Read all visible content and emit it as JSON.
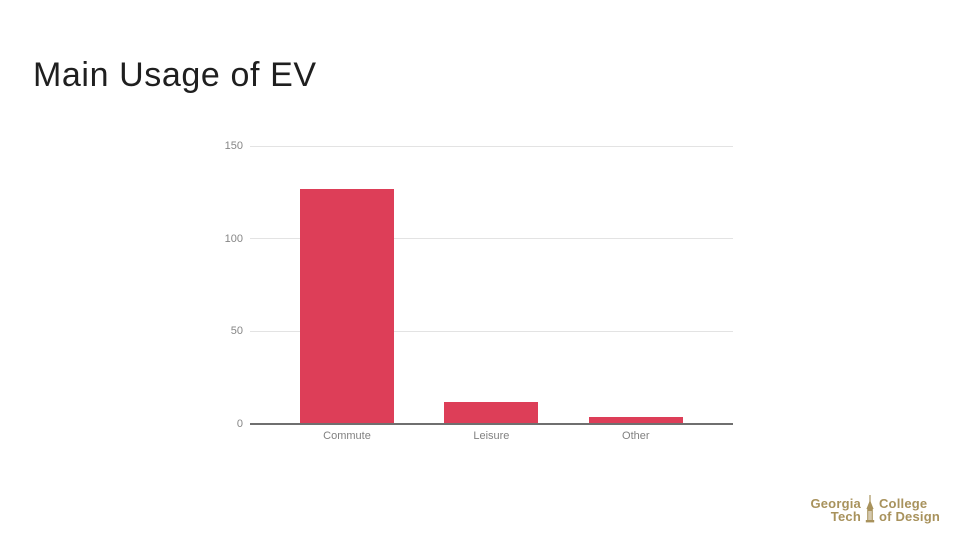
{
  "slide": {
    "title": "Main Usage of EV"
  },
  "chart_data": {
    "type": "bar",
    "title": "",
    "categories": [
      "Commute",
      "Leisure",
      "Other"
    ],
    "values": [
      127,
      12,
      4
    ],
    "xlabel": "",
    "ylabel": "",
    "ylim": [
      0,
      150
    ],
    "yticks": [
      0,
      50,
      100,
      150
    ],
    "grid": "horizontal",
    "legend": "none",
    "bar_color": "#dd3e58",
    "gridline_color": "#e3e3e3",
    "axis_color": "#6f6f6f",
    "tick_label_color": "#868686"
  },
  "logo": {
    "line1_left": "Georgia",
    "line2_left": "Tech",
    "line1_right": "College",
    "line2_right": "of Design",
    "color": "#a8925c"
  }
}
